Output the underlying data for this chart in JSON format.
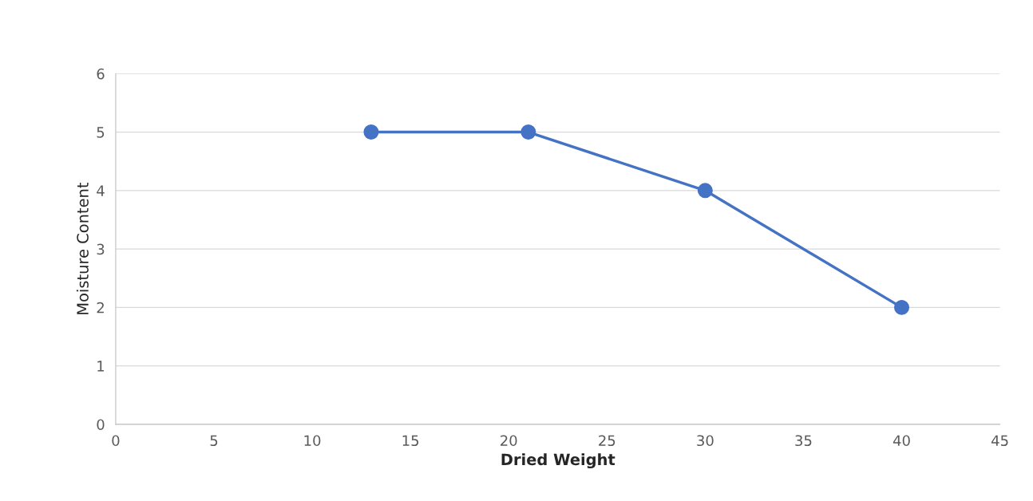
{
  "chart_data": {
    "type": "line",
    "xlabel": "Dried Weight",
    "ylabel": "Moisture Content",
    "x": [
      13,
      21,
      30,
      40
    ],
    "series": [
      {
        "color": "#4472c4",
        "values": [
          5,
          5,
          4,
          2
        ]
      }
    ],
    "xlim": [
      0,
      45
    ],
    "xticks": [
      0,
      5,
      10,
      15,
      20,
      25,
      30,
      35,
      40,
      45
    ],
    "ylim": [
      0,
      6
    ],
    "yticks": [
      0,
      1,
      2,
      3,
      4,
      5,
      6
    ],
    "grid": "y",
    "marker": "circle",
    "line_style": "solid"
  }
}
